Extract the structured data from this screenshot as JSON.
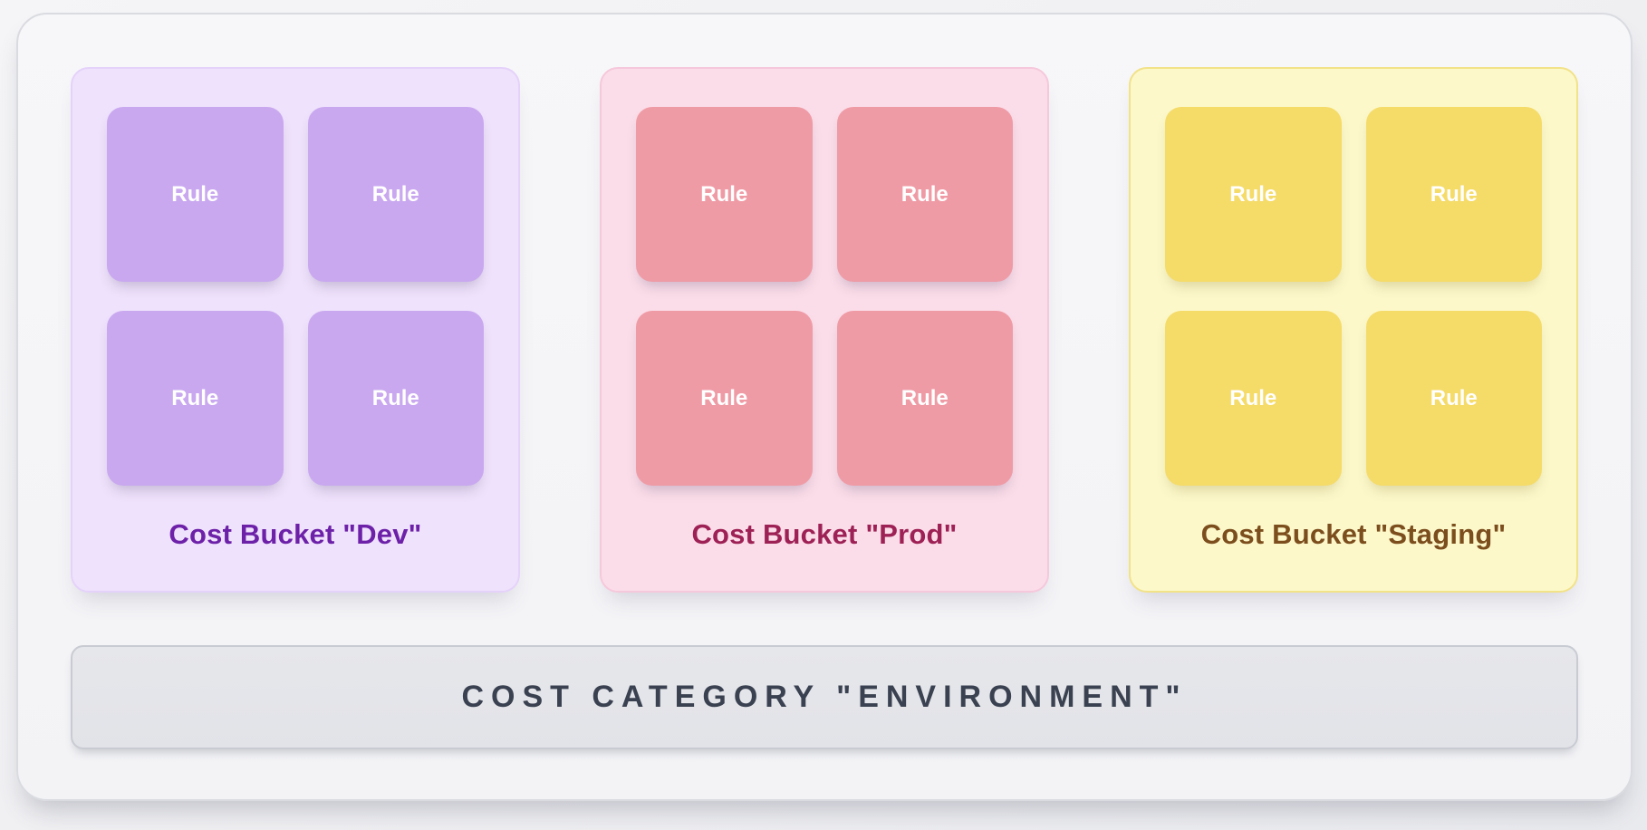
{
  "buckets": [
    {
      "id": "dev",
      "label": "Cost Bucket \"Dev\"",
      "rules": [
        "Rule",
        "Rule",
        "Rule",
        "Rule"
      ],
      "colors": {
        "card_bg": "#efe2fc",
        "card_border": "#e5d2fa",
        "tile_bg": "#c9a8ef",
        "tile_text": "#ffffff",
        "label": "#6d21a8"
      }
    },
    {
      "id": "prod",
      "label": "Cost Bucket \"Prod\"",
      "rules": [
        "Rule",
        "Rule",
        "Rule",
        "Rule"
      ],
      "colors": {
        "card_bg": "#fbdde9",
        "card_border": "#f6c8db",
        "tile_bg": "#ef9ba6",
        "tile_text": "#ffffff",
        "label": "#9e2155"
      }
    },
    {
      "id": "staging",
      "label": "Cost Bucket \"Staging\"",
      "rules": [
        "Rule",
        "Rule",
        "Rule",
        "Rule"
      ],
      "colors": {
        "card_bg": "#fcf8ca",
        "card_border": "#f2e288",
        "tile_bg": "#f5db68",
        "tile_text": "#ffffff",
        "label": "#7c4e1d"
      }
    }
  ],
  "category_bar": {
    "label": "COST CATEGORY \"ENVIRONMENT\"",
    "colors": {
      "bar_bg": "#e4e5e9",
      "bar_border": "#c9cbd3",
      "text": "#3a4150"
    }
  }
}
